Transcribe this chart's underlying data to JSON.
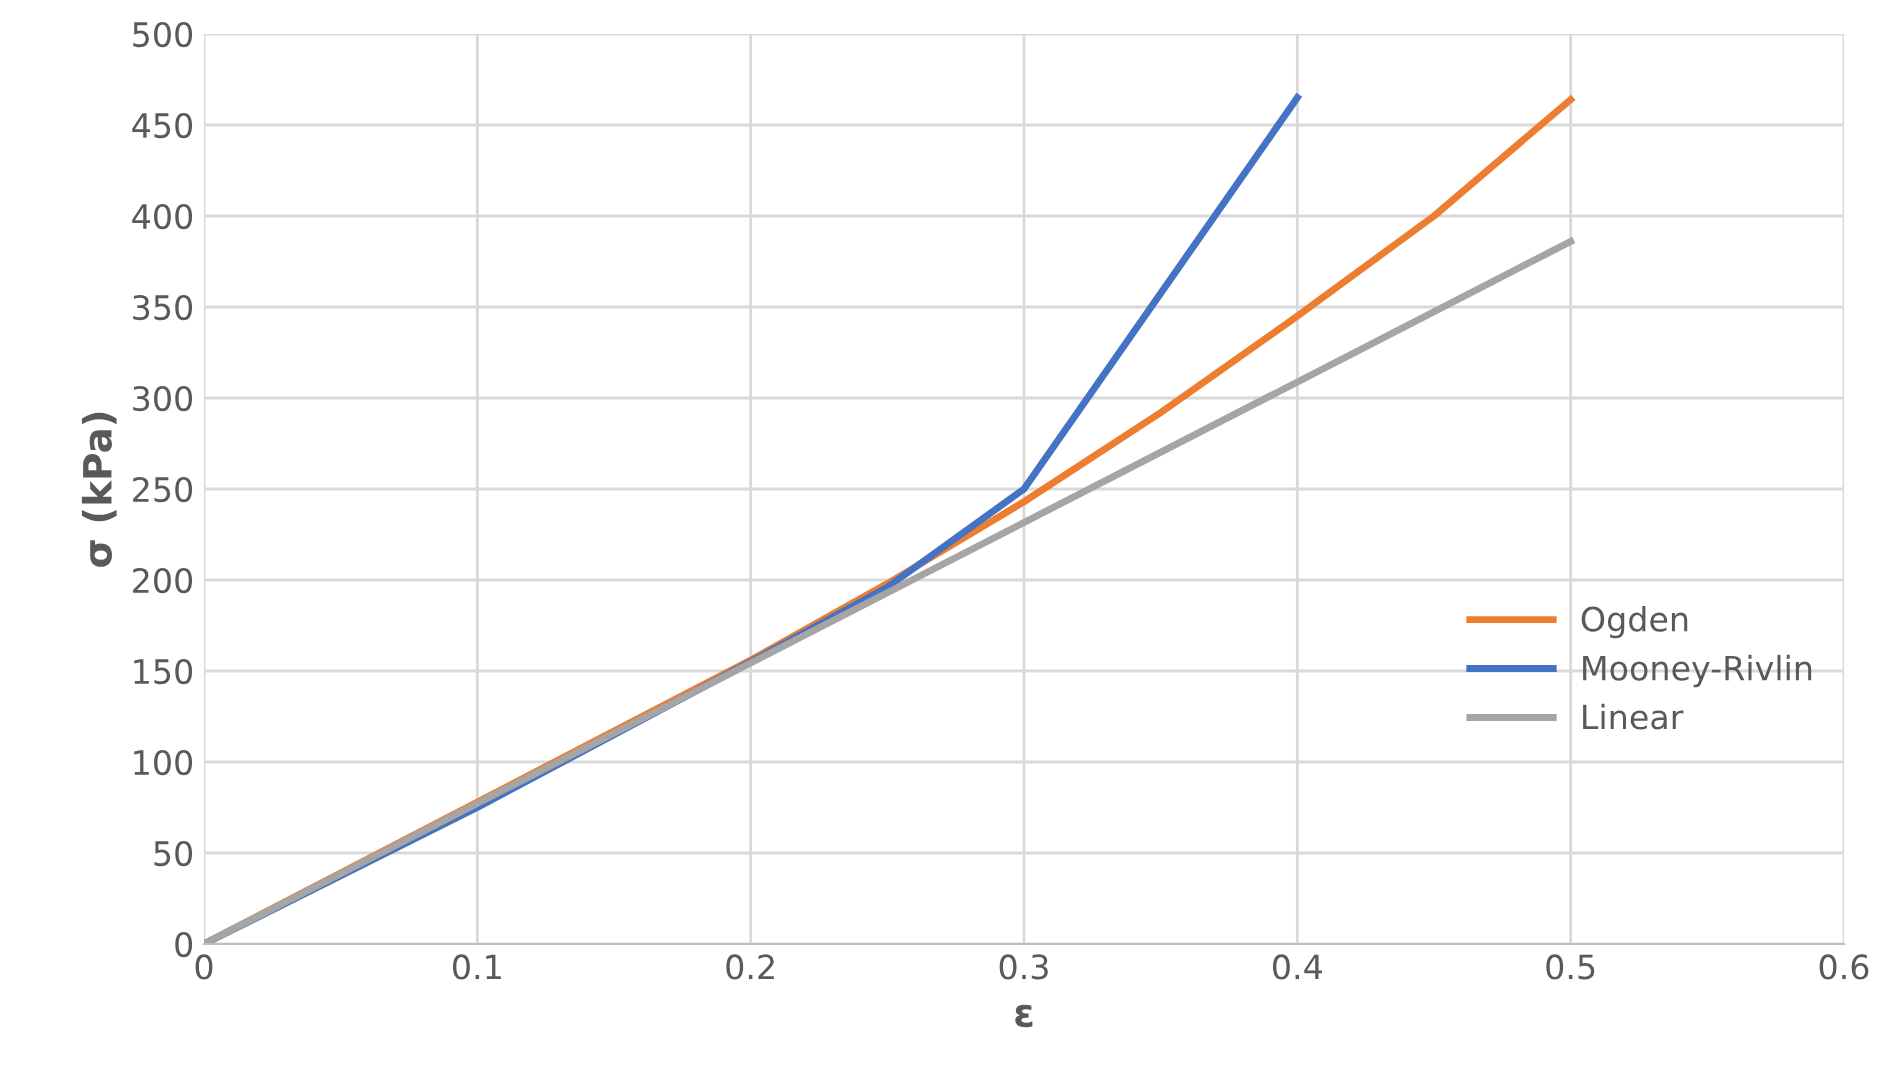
{
  "chart_data": {
    "type": "line",
    "xlabel": "ε",
    "ylabel": "σ (kPa)",
    "xlim": [
      0,
      0.6
    ],
    "xticks": [
      0,
      0.1,
      0.2,
      0.3,
      0.4,
      0.5,
      0.6
    ],
    "ylim": [
      0,
      500
    ],
    "yticks": [
      0,
      50,
      100,
      150,
      200,
      250,
      300,
      350,
      400,
      450,
      500
    ],
    "grid": true,
    "legend": "right",
    "marker": "none",
    "line_style": "solid",
    "series": [
      {
        "name": "Ogden",
        "color": "#ed7d31",
        "x": [
          0,
          0.2,
          0.25,
          0.3,
          0.35,
          0.4,
          0.45,
          0.5
        ],
        "values": [
          0,
          156,
          198,
          243,
          292,
          345,
          400,
          464
        ]
      },
      {
        "name": "Mooney-Rivlin",
        "color": "#4472c4",
        "x": [
          0,
          0.1,
          0.2,
          0.25,
          0.3,
          0.4
        ],
        "values": [
          0,
          75,
          155,
          196,
          250,
          465
        ]
      },
      {
        "name": "Linear",
        "color": "#a5a5a5",
        "x": [
          0,
          0.5
        ],
        "values": [
          0,
          386
        ]
      }
    ]
  }
}
